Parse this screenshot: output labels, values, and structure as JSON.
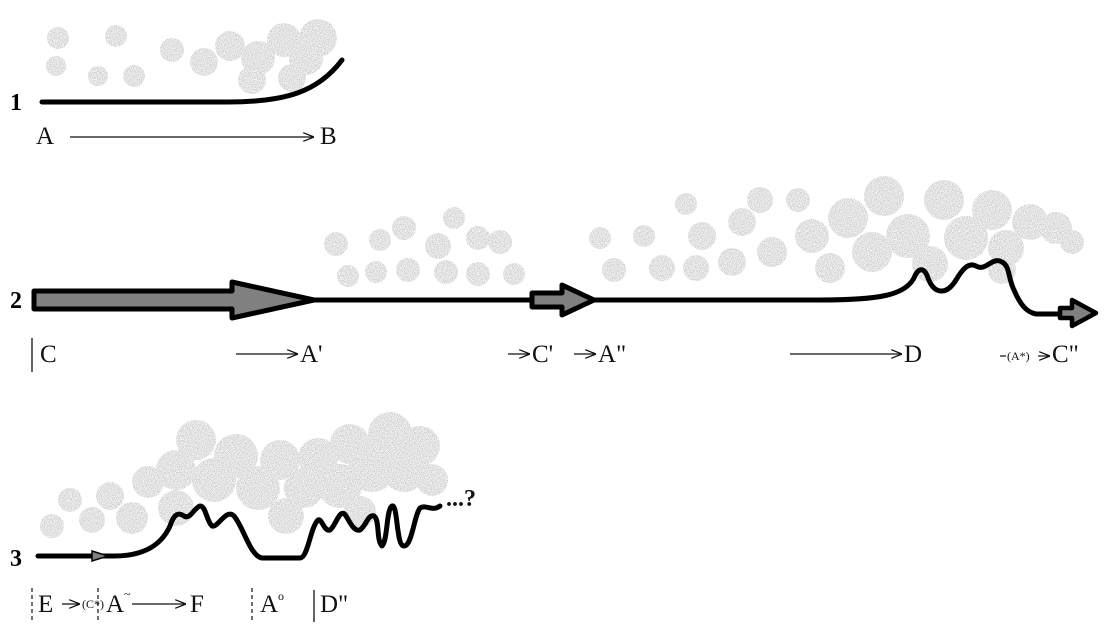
{
  "rows": [
    {
      "number": "1"
    },
    {
      "number": "2"
    },
    {
      "number": "3"
    }
  ],
  "labels": {
    "r1_a": "A",
    "r1_b": "B",
    "r2_c": "C",
    "r2_a1": "A'",
    "r2_c1": "C'",
    "r2_a2": "A\"",
    "r2_d": "D",
    "r2_astar": "(A*)",
    "r2_c2": "C\"",
    "r3_e": "E",
    "r3_cstar": "(C*)",
    "r3_atilde": "A",
    "r3_tilde": "~",
    "r3_f": "F",
    "r3_ao": "A",
    "r3_ao_mark": "o",
    "r3_d2": "D\"",
    "r3_question": "...?"
  },
  "colors": {
    "path": "#000000",
    "arrow_fill": "#808080",
    "cloud": "#8a8a8a"
  }
}
